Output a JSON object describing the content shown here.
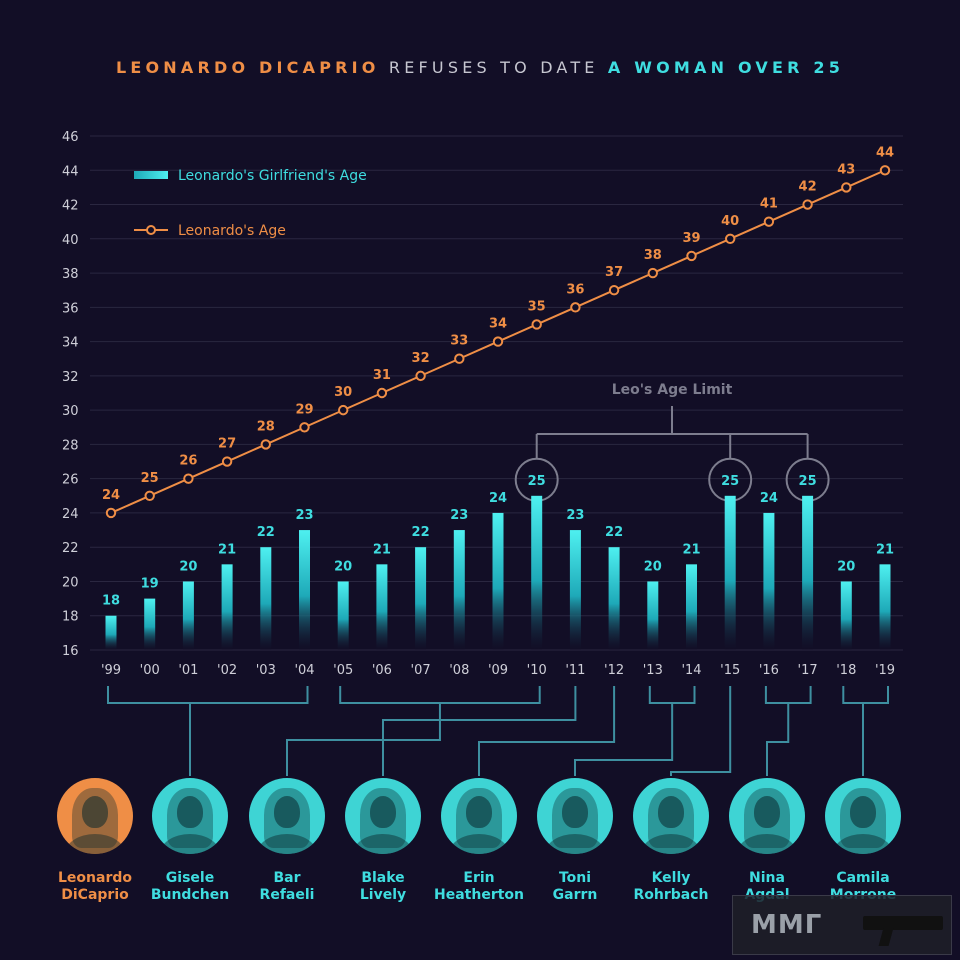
{
  "title": {
    "part1": "LEONARDO DICAPRIO",
    "part2": " REFUSES TO DATE ",
    "part3": "A WOMAN OVER 25"
  },
  "colors": {
    "background": "#120e26",
    "orange": "#ef8e46",
    "cyan": "#3fdde0",
    "grid": "#2a2740",
    "connector": "#3e8fa0",
    "limit": "#7d7d8e"
  },
  "chart_data": {
    "type": "bar",
    "categories": [
      "'99",
      "'00",
      "'01",
      "'02",
      "'03",
      "'04",
      "'05",
      "'06",
      "'07",
      "'08",
      "'09",
      "'10",
      "'11",
      "'12",
      "'13",
      "'14",
      "'15",
      "'16",
      "'17",
      "'18",
      "'19"
    ],
    "series": [
      {
        "name": "Leonardo's Girlfriend's Age",
        "type": "bar",
        "values": [
          18,
          19,
          20,
          21,
          22,
          23,
          20,
          21,
          22,
          23,
          24,
          25,
          23,
          22,
          20,
          21,
          25,
          24,
          25,
          20,
          21
        ]
      },
      {
        "name": "Leonardo's Age",
        "type": "line",
        "values": [
          24,
          25,
          26,
          27,
          28,
          29,
          30,
          31,
          32,
          33,
          34,
          35,
          36,
          37,
          38,
          39,
          40,
          41,
          42,
          43,
          44
        ]
      }
    ],
    "ylim": [
      16,
      46
    ],
    "yticks": [
      16,
      18,
      20,
      22,
      24,
      26,
      28,
      30,
      32,
      34,
      36,
      38,
      40,
      42,
      44,
      46
    ],
    "grid": true,
    "legend_position": "top-left",
    "annotation": {
      "label": "Leo's Age Limit",
      "categories": [
        "'10",
        "'15",
        "'17"
      ]
    }
  },
  "people": [
    {
      "name": "Leonardo\nDiCaprio",
      "categories": [],
      "highlight": true
    },
    {
      "name": "Gisele\nBundchen",
      "categories": [
        "'99",
        "'00",
        "'01",
        "'02",
        "'03",
        "'04"
      ]
    },
    {
      "name": "Bar\nRefaeli",
      "categories": [
        "'05",
        "'06",
        "'07",
        "'08",
        "'09",
        "'10"
      ]
    },
    {
      "name": "Blake\nLively",
      "categories": [
        "'11"
      ]
    },
    {
      "name": "Erin\nHeatherton",
      "categories": [
        "'12"
      ]
    },
    {
      "name": "Toni\nGarrn",
      "categories": [
        "'13",
        "'14"
      ]
    },
    {
      "name": "Kelly\nRohrbach",
      "categories": [
        "'15"
      ]
    },
    {
      "name": "Nina\nAgdal",
      "categories": [
        "'16",
        "'17"
      ]
    },
    {
      "name": "Camila\nMorrone",
      "categories": [
        "'18",
        "'19"
      ]
    }
  ],
  "watermark": {
    "text": "ММГ"
  }
}
